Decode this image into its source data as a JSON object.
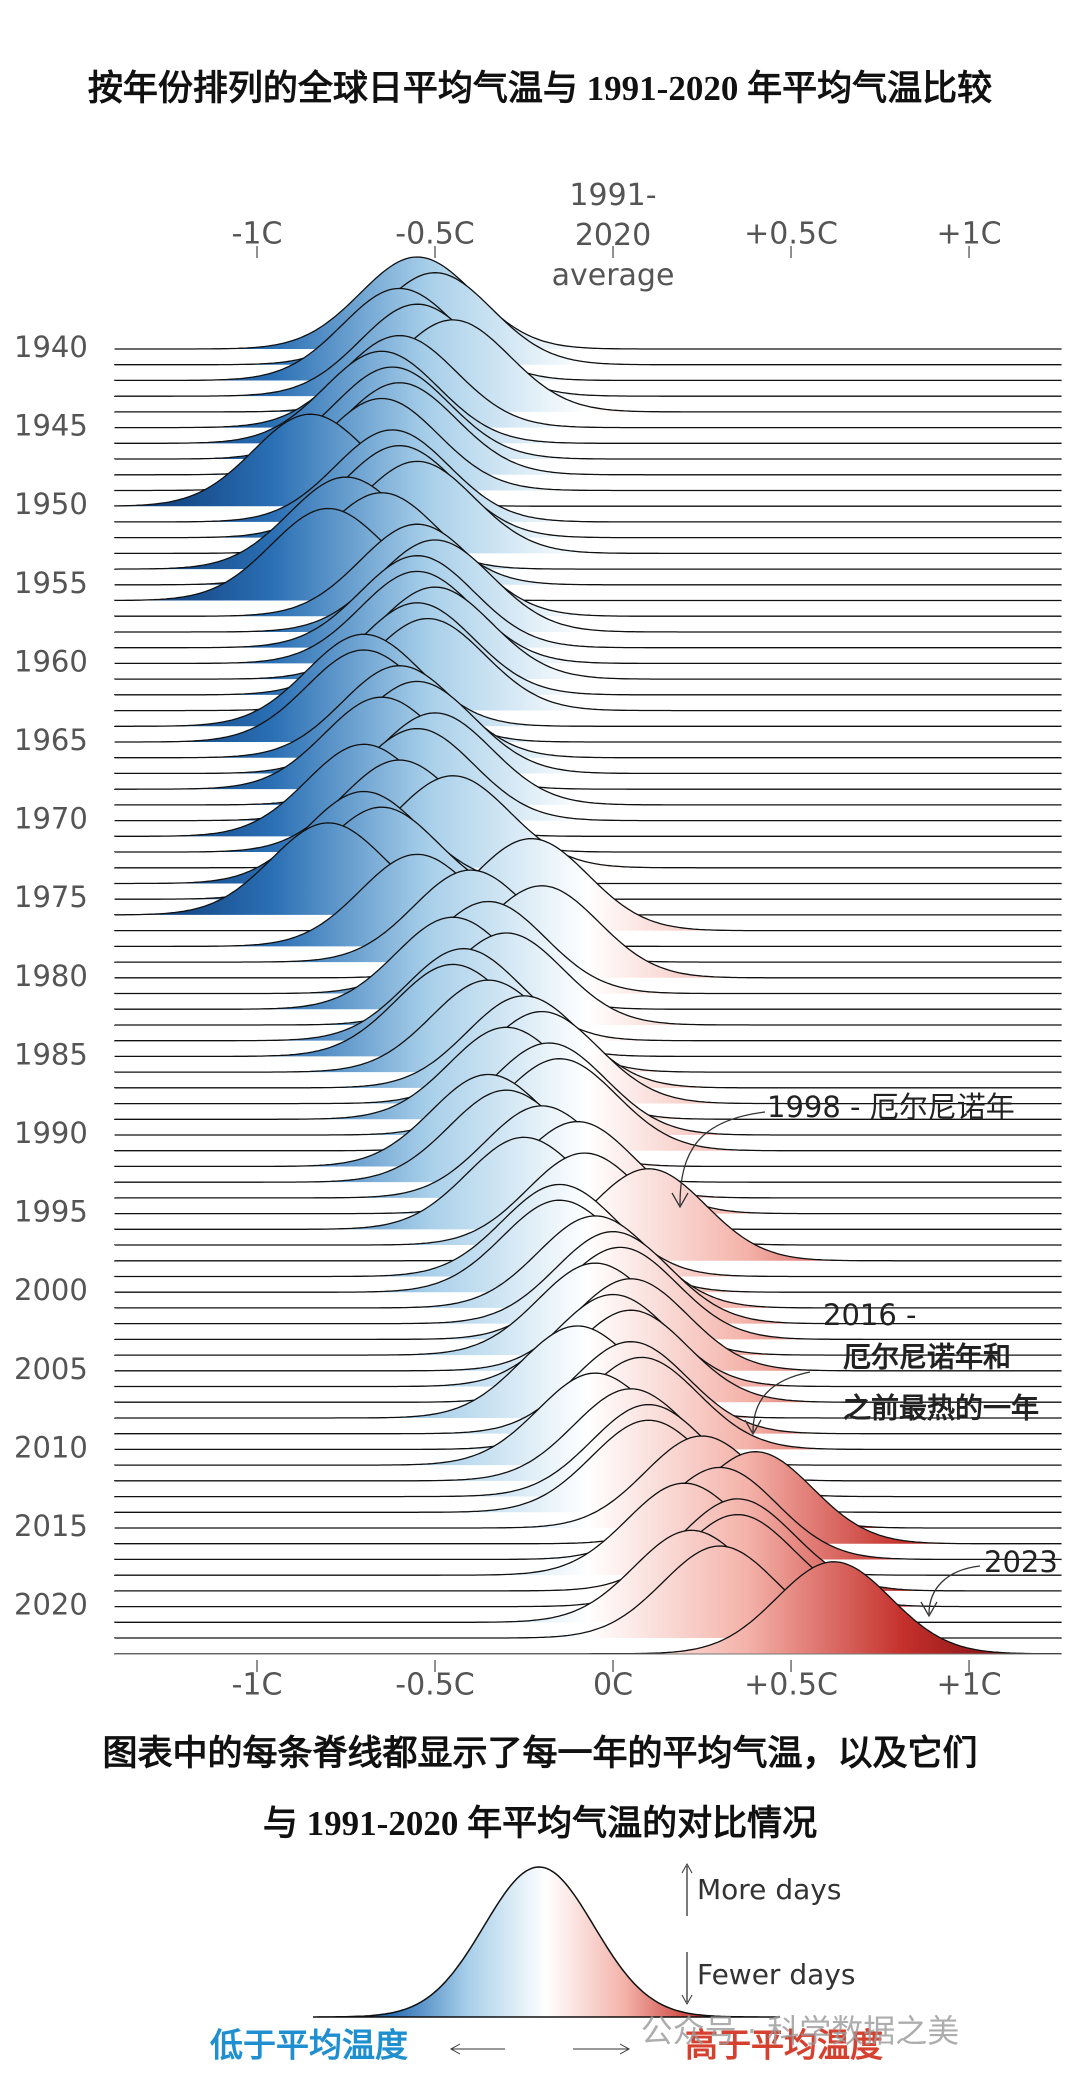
{
  "chart_data": {
    "type": "ridgeline",
    "title": "按年份排列的全球日平均气温与 1991-2020 年平均气温比较",
    "subtitle": [
      "图表中的每条脊线都显示了每一年的平均气温，以及它们",
      "与 1991-2020 年平均气温的对比情况"
    ],
    "categories": [
      "1940",
      null,
      null,
      null,
      null,
      "1945",
      null,
      null,
      null,
      null,
      "1950",
      null,
      null,
      null,
      null,
      "1955",
      null,
      null,
      null,
      null,
      "1960",
      null,
      null,
      null,
      null,
      "1965",
      null,
      null,
      null,
      null,
      "1970",
      null,
      null,
      null,
      null,
      "1975",
      null,
      null,
      null,
      null,
      "1980",
      null,
      null,
      null,
      null,
      "1985",
      null,
      null,
      null,
      null,
      "1990",
      null,
      null,
      null,
      null,
      "1995",
      null,
      null,
      null,
      null,
      "2000",
      null,
      null,
      null,
      null,
      "2005",
      null,
      null,
      null,
      null,
      "2010",
      null,
      null,
      null,
      null,
      "2015",
      null,
      null,
      null,
      null,
      "2020",
      null,
      null,
      null
    ],
    "values": [
      -0.55,
      -0.5,
      -0.6,
      -0.55,
      -0.45,
      -0.6,
      -0.65,
      -0.62,
      -0.6,
      -0.65,
      -0.85,
      -0.62,
      -0.6,
      -0.55,
      -0.75,
      -0.65,
      -0.8,
      -0.55,
      -0.5,
      -0.55,
      -0.55,
      -0.5,
      -0.55,
      -0.52,
      -0.7,
      -0.7,
      -0.6,
      -0.55,
      -0.65,
      -0.5,
      -0.55,
      -0.7,
      -0.6,
      -0.45,
      -0.7,
      -0.65,
      -0.8,
      -0.23,
      -0.55,
      -0.4,
      -0.2,
      -0.35,
      -0.45,
      -0.3,
      -0.42,
      -0.45,
      -0.35,
      -0.25,
      -0.2,
      -0.3,
      -0.18,
      -0.15,
      -0.35,
      -0.3,
      -0.2,
      -0.1,
      -0.25,
      -0.08,
      0.1,
      -0.15,
      -0.15,
      -0.05,
      0.0,
      0.02,
      -0.05,
      0.05,
      0.0,
      0.05,
      -0.1,
      0.05,
      0.08,
      -0.05,
      0.05,
      0.1,
      0.1,
      0.25,
      0.4,
      0.3,
      0.2,
      0.35,
      0.35,
      0.22,
      0.3,
      0.62
    ],
    "xlim": [
      -1.4,
      1.26
    ],
    "xticks": [
      {
        "value": -1,
        "label": "-1C"
      },
      {
        "value": -0.5,
        "label": "-0.5C"
      },
      {
        "value": 0,
        "label": "0C"
      },
      {
        "value": 0.5,
        "label": "+0.5C"
      },
      {
        "value": 1,
        "label": "+1C"
      }
    ],
    "x2ticks": [
      {
        "value": -1,
        "label": "-1C"
      },
      {
        "value": -0.5,
        "label": "-0.5C"
      },
      {
        "value": 0,
        "label": "1991-2020 average"
      },
      {
        "value": 0.5,
        "label": "+0.5C"
      },
      {
        "value": 1,
        "label": "+1C"
      }
    ],
    "colormap": [
      "#08306b",
      "#2a6fb4",
      "#a9d0ea",
      "#ffffff",
      "#f4b3aa",
      "#c5302b",
      "#5c0008"
    ],
    "annotations": [
      "1998 - 厄尔尼诺年",
      "2016 -",
      "厄尔尼诺年和",
      "之前最热的一年",
      "2023"
    ],
    "legend": {
      "more": "More days",
      "fewer": "Fewer days",
      "below": "低于平均温度",
      "above": "高于平均温度"
    },
    "watermark": "公众号 · 科学数据之美"
  }
}
